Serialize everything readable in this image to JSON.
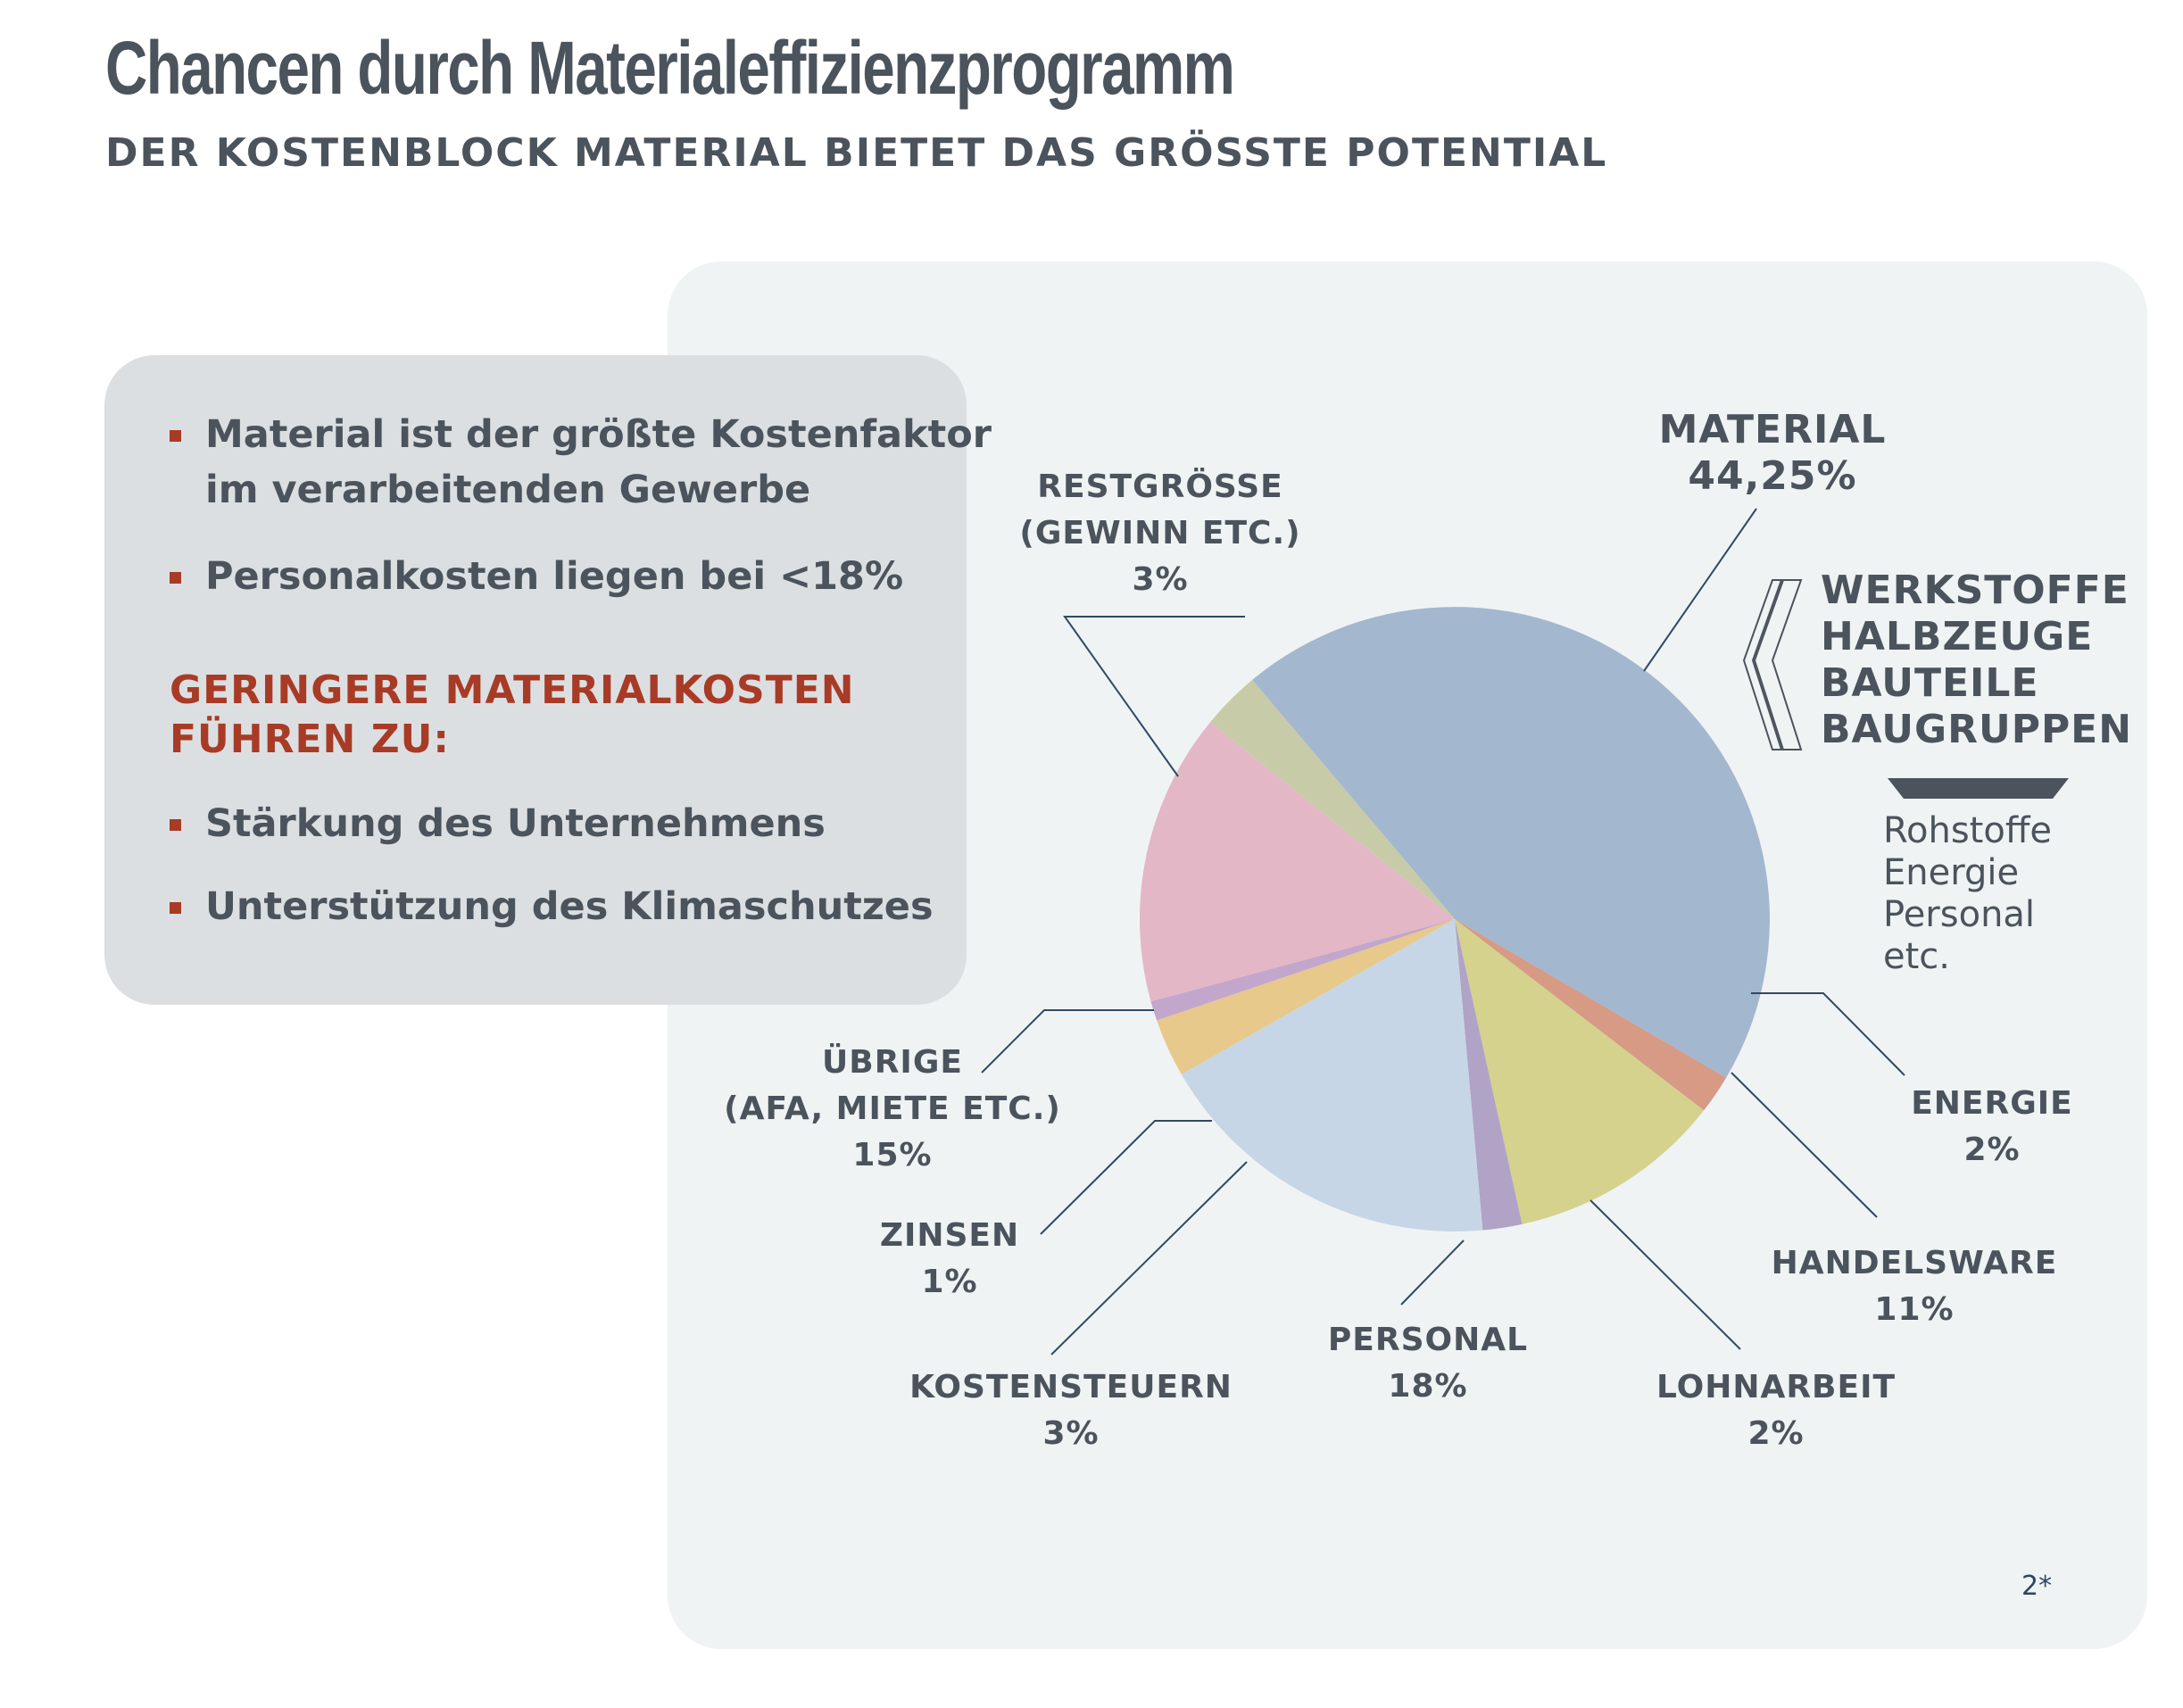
{
  "title": "Chancen durch Materialeffizienzprogramm",
  "subtitle": "DER KOSTENBLOCK MATERIAL BIETET DAS GRÖSSTE POTENTIAL",
  "infobox": {
    "bullets_top": [
      "Material ist der größte Kostenfaktor\nim verarbeitenden Gewerbe",
      "Personalkosten liegen bei <18%"
    ],
    "heading": "GERINGERE MATERIALKOSTEN\nFÜHREN ZU:",
    "bullets_bottom": [
      "Stärkung des Unternehmens",
      "Unterstützung des Klimaschutzes"
    ]
  },
  "colors": {
    "accent_red": "#a83b26",
    "text_dark": "#4b535c",
    "panel_bg": "#f0f3f4",
    "infobox_bg": "#dcdfe1"
  },
  "chart_data": {
    "type": "pie",
    "slices": [
      {
        "key": "material",
        "lines": [
          "MATERIAL",
          "44,25%"
        ],
        "value": 44.25,
        "color": "#a3b7cf"
      },
      {
        "key": "energie",
        "lines": [
          "ENERGIE",
          "2%"
        ],
        "value": 2,
        "color": "#d69a85"
      },
      {
        "key": "handelsware",
        "lines": [
          "HANDELSWARE",
          "11%"
        ],
        "value": 11,
        "color": "#d4d28d"
      },
      {
        "key": "lohnarbeit",
        "lines": [
          "LOHNARBEIT",
          "2%"
        ],
        "value": 2,
        "color": "#b0a3c6"
      },
      {
        "key": "personal",
        "lines": [
          "PERSONAL",
          "18%"
        ],
        "value": 18,
        "color": "#c6d6e6"
      },
      {
        "key": "kostensteuern",
        "lines": [
          "KOSTENSTEUERN",
          "3%"
        ],
        "value": 3,
        "color": "#e7c98b"
      },
      {
        "key": "zinsen",
        "lines": [
          "ZINSEN",
          "1%"
        ],
        "value": 1,
        "color": "#c3a6cb"
      },
      {
        "key": "uebrige",
        "lines": [
          "ÜBRIGE",
          "(AFA, MIETE ETC.)",
          "15%"
        ],
        "value": 15,
        "color": "#e3b7c6"
      },
      {
        "key": "restgroesse",
        "lines": [
          "RESTGRÖSSE",
          "(GEWINN ETC.)",
          "3%"
        ],
        "value": 3,
        "color": "#c8cba8"
      }
    ]
  },
  "material_breakdown": {
    "items": [
      "WERKSTOFFE",
      "HALBZEUGE",
      "BAUTEILE",
      "BAUGRUPPEN"
    ],
    "other_items": [
      "Rohstoffe",
      "Energie",
      "Personal",
      "etc."
    ]
  },
  "page_number": "2*"
}
